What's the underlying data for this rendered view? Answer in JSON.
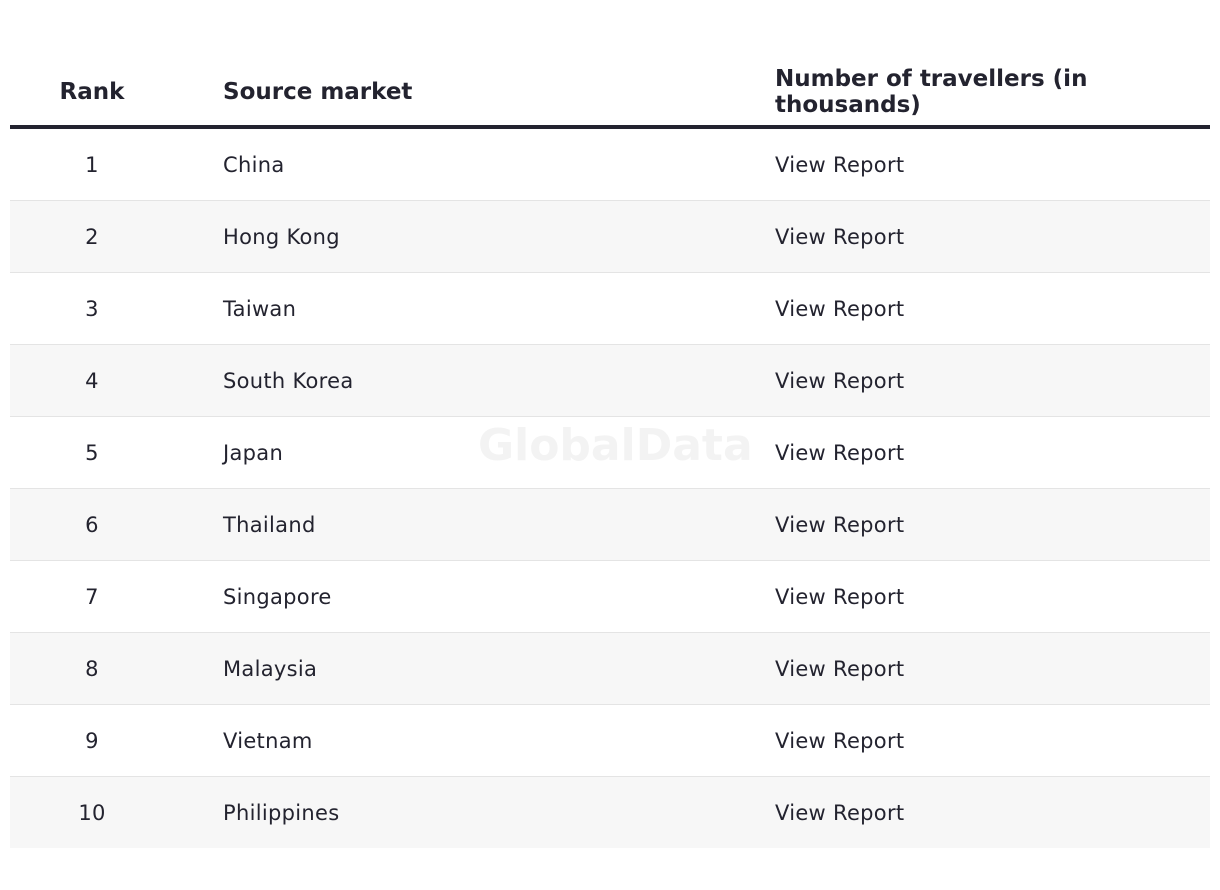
{
  "table": {
    "headers": [
      "Rank",
      "Source market",
      "Number of travellers (in thousands)"
    ],
    "rows": [
      [
        1,
        "China",
        "View Report"
      ],
      [
        2,
        "Hong Kong",
        "View Report"
      ],
      [
        3,
        "Taiwan",
        "View Report"
      ],
      [
        4,
        "South Korea",
        "View Report"
      ],
      [
        5,
        "Japan",
        "View Report"
      ],
      [
        6,
        "Thailand",
        "View Report"
      ],
      [
        7,
        "Singapore",
        "View Report"
      ],
      [
        8,
        "Malaysia",
        "View Report"
      ],
      [
        9,
        "Vietnam",
        "View Report"
      ],
      [
        10,
        "Philippines",
        "View Report"
      ]
    ]
  },
  "watermark": "GlobalData"
}
